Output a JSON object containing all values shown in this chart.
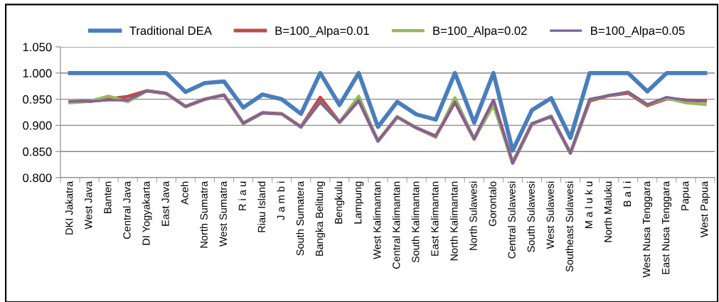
{
  "chart_data": {
    "type": "line",
    "categories": [
      "DKI Jakatra",
      "West Java",
      "Banten",
      "Central Java",
      "DI Yogyakarta",
      "East Java",
      "Aceh",
      "North Sumatra",
      "West Sumatra",
      "R i a u",
      "Riau Island",
      "J a m b i",
      "South Sumatera",
      "Bangka Belitung",
      "Bengkulu",
      "Lampung",
      "West Kalimantan",
      "Central Kalimantan",
      "South Kalimantan",
      "East Kalimantan",
      "North Kalimantan",
      "North Sulawesi",
      "Gorontalo",
      "Central Sulawesi",
      "South Sulawesi",
      "West Sulawesi",
      "Southeast Sulawesi",
      "M a l u k u",
      "North Maluku",
      "B a l i",
      "West Nusa Tenggara",
      "East Nusa Tenggara",
      "Papua",
      "West Papua"
    ],
    "series": [
      {
        "name": "Traditional DEA",
        "color": "#4a7ebb",
        "values": [
          1,
          1,
          1,
          1,
          1,
          1,
          0.964,
          0.981,
          0.984,
          0.934,
          0.959,
          0.95,
          0.922,
          1,
          0.939,
          1,
          0.897,
          0.945,
          0.921,
          0.911,
          1,
          0.905,
          1,
          0.852,
          0.929,
          0.952,
          0.876,
          1,
          1,
          1,
          0.965,
          1,
          1,
          1
        ]
      },
      {
        "name": "B=100_Alpa=0.01",
        "color": "#be4b48",
        "values": [
          0.945,
          0.946,
          0.95,
          0.955,
          0.966,
          0.961,
          0.936,
          0.95,
          0.958,
          0.904,
          0.924,
          0.922,
          0.897,
          0.953,
          0.906,
          0.948,
          0.87,
          0.916,
          0.895,
          0.879,
          0.945,
          0.874,
          0.947,
          0.828,
          0.903,
          0.917,
          0.847,
          0.947,
          0.957,
          0.962,
          0.938,
          0.951,
          0.948,
          0.947
        ]
      },
      {
        "name": "B=100_Alpa=0.02",
        "color": "#98b954",
        "values": [
          0.943,
          0.946,
          0.956,
          0.945,
          0.966,
          0.961,
          0.936,
          0.95,
          0.958,
          0.904,
          0.924,
          0.922,
          0.897,
          0.944,
          0.906,
          0.956,
          0.87,
          0.916,
          0.895,
          0.877,
          0.953,
          0.874,
          0.938,
          0.828,
          0.903,
          0.917,
          0.847,
          0.95,
          0.957,
          0.964,
          0.94,
          0.952,
          0.943,
          0.94
        ]
      },
      {
        "name": "B=100_Alpa=0.05",
        "color": "#7d60a0",
        "values": [
          0.946,
          0.946,
          0.948,
          0.948,
          0.966,
          0.961,
          0.936,
          0.95,
          0.958,
          0.904,
          0.924,
          0.922,
          0.897,
          0.944,
          0.906,
          0.948,
          0.87,
          0.916,
          0.895,
          0.879,
          0.945,
          0.874,
          0.947,
          0.828,
          0.903,
          0.917,
          0.847,
          0.95,
          0.957,
          0.964,
          0.94,
          0.954,
          0.948,
          0.946
        ]
      }
    ],
    "ylim": [
      0.8,
      1.05
    ],
    "yticks": [
      {
        "value": 0.8,
        "label": "0.800"
      },
      {
        "value": 0.85,
        "label": "0.850"
      },
      {
        "value": 0.9,
        "label": "0.900"
      },
      {
        "value": 0.95,
        "label": "0.950"
      },
      {
        "value": 1.0,
        "label": "1.000"
      },
      {
        "value": 1.05,
        "label": "1.050"
      }
    ],
    "grid": "y",
    "legend": "top",
    "marker": "none",
    "line_style": "solid"
  }
}
